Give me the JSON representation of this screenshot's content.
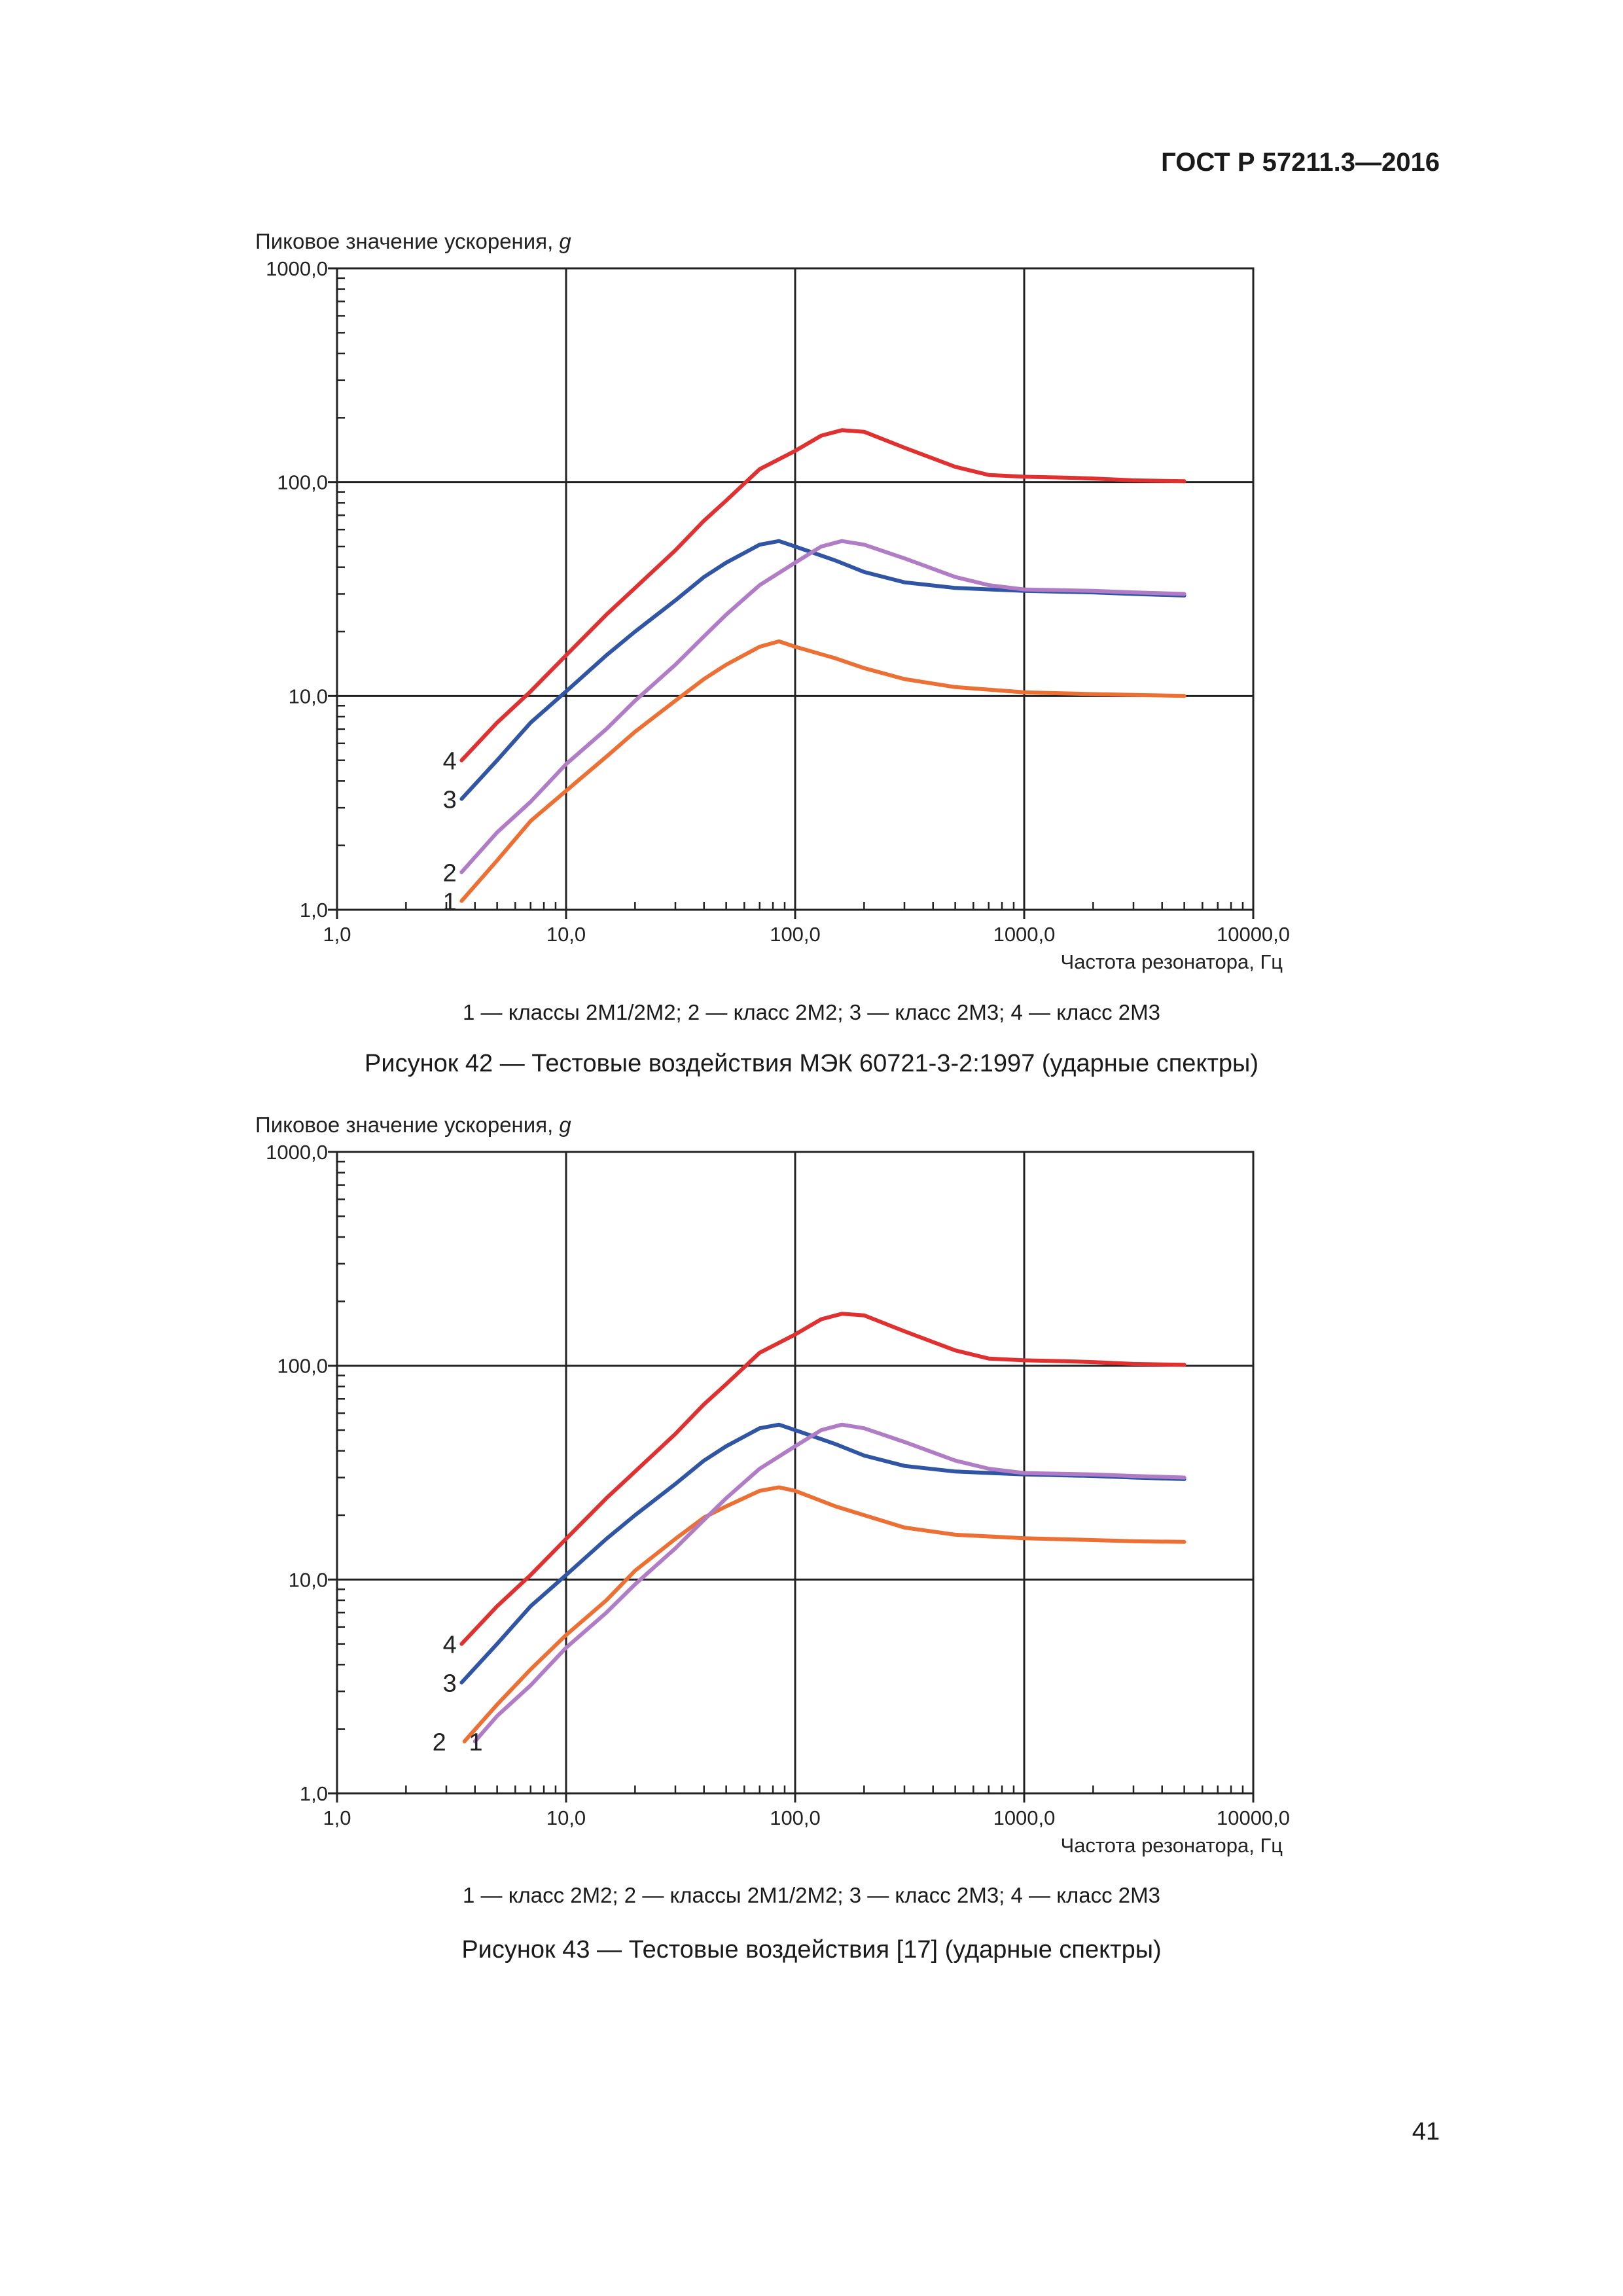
{
  "header": {
    "doc_code": "ГОСТ Р 57211.3—2016"
  },
  "page_number": "41",
  "colors": {
    "red": "#e03030",
    "blue": "#2f55a4",
    "purple": "#b07cc6",
    "orange": "#ec7033",
    "axis": "#222222"
  },
  "chart_data": [
    {
      "type": "line",
      "title": "",
      "ylabel": "Пиковое значение ускорения, g",
      "ylabel_main": "Пиковое значение ускорения, ",
      "ylabel_unit": "g",
      "xlabel": "Частота резонатора, Гц",
      "x_scale": "log",
      "y_scale": "log",
      "xlim": [
        1,
        10000
      ],
      "ylim": [
        1,
        1000
      ],
      "x_ticks": [
        "1,0",
        "10,0",
        "100,0",
        "1000,0",
        "10000,0"
      ],
      "y_ticks": [
        "1,0",
        "10,0",
        "100,0",
        "1000,0"
      ],
      "grid": true,
      "series": [
        {
          "name": "4",
          "color": "red",
          "label_pos": [
            4,
            5.0
          ],
          "points": [
            [
              3.5,
              5.0
            ],
            [
              5,
              7.5
            ],
            [
              7,
              10.5
            ],
            [
              10,
              15.5
            ],
            [
              15,
              24
            ],
            [
              20,
              32
            ],
            [
              30,
              48
            ],
            [
              40,
              66
            ],
            [
              50,
              82
            ],
            [
              70,
              115
            ],
            [
              100,
              140
            ],
            [
              130,
              165
            ],
            [
              160,
              175
            ],
            [
              200,
              172
            ],
            [
              300,
              145
            ],
            [
              500,
              118
            ],
            [
              700,
              108
            ],
            [
              1000,
              106
            ],
            [
              1500,
              105
            ],
            [
              2000,
              104
            ],
            [
              3000,
              102
            ],
            [
              5000,
              101
            ]
          ]
        },
        {
          "name": "3",
          "color": "blue",
          "label_pos": [
            4,
            3.3
          ],
          "points": [
            [
              3.5,
              3.3
            ],
            [
              5,
              5.0
            ],
            [
              7,
              7.5
            ],
            [
              10,
              10.5
            ],
            [
              15,
              15.5
            ],
            [
              20,
              20
            ],
            [
              30,
              28
            ],
            [
              40,
              36
            ],
            [
              50,
              42
            ],
            [
              70,
              51
            ],
            [
              85,
              53
            ],
            [
              100,
              50
            ],
            [
              150,
              43
            ],
            [
              200,
              38
            ],
            [
              300,
              34
            ],
            [
              500,
              32
            ],
            [
              1000,
              31
            ],
            [
              2000,
              30.5
            ],
            [
              3000,
              30
            ],
            [
              5000,
              29.5
            ]
          ]
        },
        {
          "name": "2",
          "color": "purple",
          "label_pos": [
            4,
            1.5
          ],
          "points": [
            [
              3.5,
              1.5
            ],
            [
              5,
              2.3
            ],
            [
              7,
              3.2
            ],
            [
              10,
              4.8
            ],
            [
              15,
              7
            ],
            [
              20,
              9.5
            ],
            [
              30,
              14
            ],
            [
              40,
              19
            ],
            [
              50,
              24
            ],
            [
              70,
              33
            ],
            [
              100,
              42
            ],
            [
              130,
              50
            ],
            [
              160,
              53
            ],
            [
              200,
              51
            ],
            [
              300,
              44
            ],
            [
              500,
              36
            ],
            [
              700,
              33
            ],
            [
              1000,
              31.5
            ],
            [
              2000,
              31
            ],
            [
              3000,
              30.5
            ],
            [
              5000,
              30
            ]
          ]
        },
        {
          "name": "1",
          "color": "orange",
          "label_pos": [
            4,
            1.1
          ],
          "points": [
            [
              3.5,
              1.1
            ],
            [
              5,
              1.7
            ],
            [
              7,
              2.6
            ],
            [
              10,
              3.6
            ],
            [
              15,
              5.2
            ],
            [
              20,
              6.8
            ],
            [
              30,
              9.5
            ],
            [
              40,
              12
            ],
            [
              50,
              14
            ],
            [
              70,
              17
            ],
            [
              85,
              18
            ],
            [
              100,
              17
            ],
            [
              150,
              15
            ],
            [
              200,
              13.5
            ],
            [
              300,
              12
            ],
            [
              500,
              11
            ],
            [
              1000,
              10.4
            ],
            [
              2000,
              10.2
            ],
            [
              5000,
              10
            ]
          ]
        }
      ]
    },
    {
      "type": "line",
      "title": "",
      "ylabel": "Пиковое значение ускорения, g",
      "ylabel_main": "Пиковое значение ускорения, ",
      "ylabel_unit": "g",
      "xlabel": "Частота резонатора, Гц",
      "x_scale": "log",
      "y_scale": "log",
      "xlim": [
        1,
        10000
      ],
      "ylim": [
        1,
        1000
      ],
      "x_ticks": [
        "1,0",
        "10,0",
        "100,0",
        "1000,0",
        "10000,0"
      ],
      "y_ticks": [
        "1,0",
        "10,0",
        "100,0",
        "1000,0"
      ],
      "grid": true,
      "series": [
        {
          "name": "4",
          "color": "red",
          "label_pos": [
            4,
            5.0
          ],
          "points": [
            [
              3.5,
              5.0
            ],
            [
              5,
              7.5
            ],
            [
              7,
              10.5
            ],
            [
              10,
              15.5
            ],
            [
              15,
              24
            ],
            [
              20,
              32
            ],
            [
              30,
              48
            ],
            [
              40,
              66
            ],
            [
              50,
              82
            ],
            [
              70,
              115
            ],
            [
              100,
              140
            ],
            [
              130,
              165
            ],
            [
              160,
              175
            ],
            [
              200,
              172
            ],
            [
              300,
              145
            ],
            [
              500,
              118
            ],
            [
              700,
              108
            ],
            [
              1000,
              106
            ],
            [
              1500,
              105
            ],
            [
              2000,
              104
            ],
            [
              3000,
              102
            ],
            [
              5000,
              101
            ]
          ]
        },
        {
          "name": "3",
          "color": "blue",
          "label_pos": [
            4,
            3.3
          ],
          "points": [
            [
              3.5,
              3.3
            ],
            [
              5,
              5.0
            ],
            [
              7,
              7.5
            ],
            [
              10,
              10.5
            ],
            [
              15,
              15.5
            ],
            [
              20,
              20
            ],
            [
              30,
              28
            ],
            [
              40,
              36
            ],
            [
              50,
              42
            ],
            [
              70,
              51
            ],
            [
              85,
              53
            ],
            [
              100,
              50
            ],
            [
              150,
              43
            ],
            [
              200,
              38
            ],
            [
              300,
              34
            ],
            [
              500,
              32
            ],
            [
              1000,
              31
            ],
            [
              2000,
              30.5
            ],
            [
              3000,
              30
            ],
            [
              5000,
              29.5
            ]
          ]
        },
        {
          "name": "2",
          "color": "orange",
          "label_pos": [
            3.6,
            1.75
          ],
          "points": [
            [
              3.6,
              1.75
            ],
            [
              5,
              2.6
            ],
            [
              7,
              3.8
            ],
            [
              10,
              5.5
            ],
            [
              15,
              8
            ],
            [
              20,
              11
            ],
            [
              30,
              15.5
            ],
            [
              40,
              19.5
            ],
            [
              50,
              22
            ],
            [
              70,
              26
            ],
            [
              85,
              27
            ],
            [
              100,
              26
            ],
            [
              150,
              22
            ],
            [
              200,
              20
            ],
            [
              300,
              17.5
            ],
            [
              500,
              16.2
            ],
            [
              1000,
              15.6
            ],
            [
              2000,
              15.3
            ],
            [
              3000,
              15.1
            ],
            [
              5000,
              15
            ]
          ]
        },
        {
          "name": "1",
          "color": "purple",
          "label_pos": [
            5.2,
            1.75
          ],
          "points": [
            [
              4,
              1.75
            ],
            [
              5,
              2.3
            ],
            [
              7,
              3.2
            ],
            [
              10,
              4.8
            ],
            [
              15,
              7
            ],
            [
              20,
              9.5
            ],
            [
              30,
              14
            ],
            [
              40,
              19
            ],
            [
              50,
              24
            ],
            [
              70,
              33
            ],
            [
              100,
              42
            ],
            [
              130,
              50
            ],
            [
              160,
              53
            ],
            [
              200,
              51
            ],
            [
              300,
              44
            ],
            [
              500,
              36
            ],
            [
              700,
              33
            ],
            [
              1000,
              31.5
            ],
            [
              2000,
              31
            ],
            [
              3000,
              30.5
            ],
            [
              5000,
              30
            ]
          ]
        }
      ]
    }
  ],
  "figures": [
    {
      "legend": "1 — классы 2М1/2М2; 2 — класс 2М2; 3 — класс 2М3; 4 — класс 2М3",
      "caption": "Рисунок 42 — Тестовые воздействия МЭК 60721-3-2:1997 (ударные спектры)"
    },
    {
      "legend": "1 — класс 2М2; 2 — классы 2М1/2М2; 3 — класс 2М3; 4 — класс 2М3",
      "caption": "Рисунок 43 — Тестовые воздействия [17] (ударные спектры)"
    }
  ]
}
